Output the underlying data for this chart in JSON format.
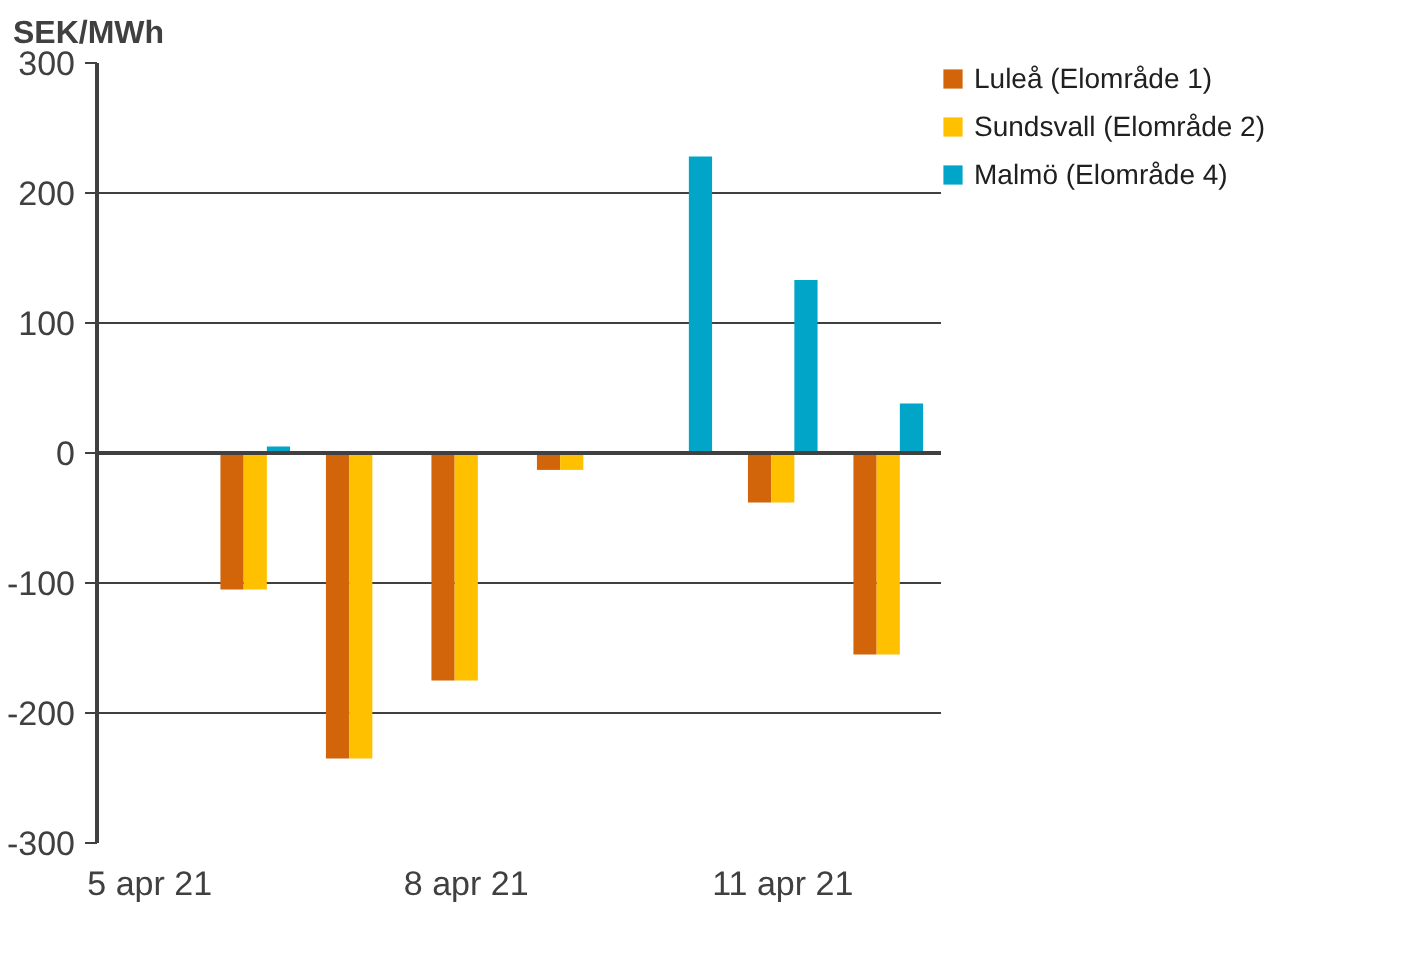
{
  "chart_data": {
    "type": "bar",
    "ylabel": "SEK/MWh",
    "categories": [
      "5 apr 21",
      null,
      null,
      "8 apr 21",
      null,
      null,
      "11 apr 21",
      null
    ],
    "series": [
      {
        "name": "Luleå (Elområde 1)",
        "color": "#d26409",
        "values": [
          0,
          -105,
          -235,
          -175,
          -13,
          0,
          -38,
          -155
        ]
      },
      {
        "name": "Sundsvall (Elområde 2)",
        "color": "#ffc000",
        "values": [
          0,
          -105,
          -235,
          -175,
          -13,
          0,
          -38,
          -155
        ]
      },
      {
        "name": "Malmö (Elområde 4)",
        "color": "#00a5c8",
        "values": [
          0,
          5,
          0,
          0,
          0,
          228,
          133,
          38
        ]
      }
    ],
    "ylim": [
      -300,
      300
    ],
    "yticks": [
      -300,
      -200,
      -100,
      0,
      100,
      200,
      300
    ],
    "grid": "y",
    "legend": "right"
  }
}
